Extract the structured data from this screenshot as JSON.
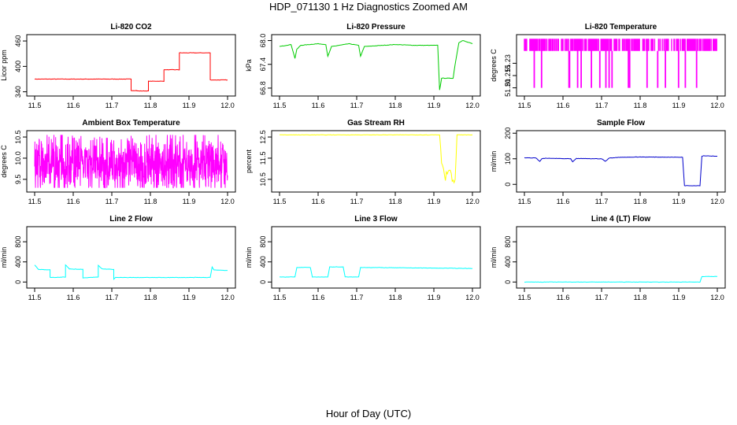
{
  "page": {
    "title": "HDP_071130  1 Hz Diagnostics Zoomed AM",
    "xaxis_title": "Hour of Day (UTC)"
  },
  "chart_data": [
    {
      "type": "line",
      "title": "Li-820 CO2",
      "ylabel": "Licor ppm",
      "color": "#ff0000",
      "xlim": [
        11.5,
        12.0
      ],
      "ylim": [
        330,
        475
      ],
      "xticks": [
        "11.5",
        "11.6",
        "11.7",
        "11.8",
        "11.9",
        "12.0"
      ],
      "yticks": [
        "340",
        "400",
        "460"
      ],
      "series": [
        {
          "x": [
            11.5,
            11.75,
            11.75,
            11.765,
            11.765,
            11.795,
            11.795,
            11.835,
            11.835,
            11.875,
            11.875,
            11.955,
            11.955,
            12.0
          ],
          "y": [
            370,
            370,
            343,
            343,
            342,
            342,
            365,
            365,
            392,
            392,
            432,
            432,
            368,
            368
          ]
        }
      ]
    },
    {
      "type": "line",
      "title": "Li-820 Pressure",
      "ylabel": "kPa",
      "color": "#00cc00",
      "xlim": [
        11.5,
        12.0
      ],
      "ylim": [
        66.6,
        68.15
      ],
      "xticks": [
        "11.5",
        "11.6",
        "11.7",
        "11.8",
        "11.9",
        "12.0"
      ],
      "yticks": [
        "66.8",
        "67.4",
        "68.0"
      ],
      "series": [
        {
          "x": [
            11.5,
            11.53,
            11.54,
            11.545,
            11.555,
            11.6,
            11.62,
            11.625,
            11.635,
            11.68,
            11.705,
            11.71,
            11.72,
            11.8,
            11.85,
            11.9,
            11.91,
            11.915,
            11.92,
            11.95,
            11.955,
            11.965,
            11.975,
            12.0
          ],
          "y": [
            67.85,
            67.9,
            67.55,
            67.78,
            67.88,
            67.92,
            67.9,
            67.6,
            67.85,
            67.92,
            67.88,
            67.6,
            67.85,
            67.9,
            67.88,
            67.88,
            67.88,
            66.75,
            67.05,
            67.05,
            67.4,
            67.95,
            68.0,
            67.92
          ]
        }
      ]
    },
    {
      "type": "line",
      "title": "Li-820 Temperature",
      "ylabel": "degrees C",
      "color": "#ff00ff",
      "xlim": [
        11.5,
        12.0
      ],
      "ylim": [
        51.19,
        51.265
      ],
      "xticks": [
        "11.5",
        "11.6",
        "11.7",
        "11.8",
        "11.9",
        "12.0"
      ],
      "yticks": [
        "51.20",
        "51.215",
        "51.23"
      ],
      "series": [
        {
          "y_levels": [
            51.2,
            51.215,
            51.23,
            51.245,
            51.26
          ]
        }
      ]
    },
    {
      "type": "line",
      "title": "Ambient Box Temperature",
      "ylabel": "degrees C",
      "color": "#ff00ff",
      "xlim": [
        11.5,
        12.0
      ],
      "ylim": [
        9.2,
        10.65
      ],
      "xticks": [
        "11.5",
        "11.6",
        "11.7",
        "11.8",
        "11.9",
        "12.0"
      ],
      "yticks": [
        "9.5",
        "10.0",
        "10.5"
      ],
      "series": [
        {
          "mean": 9.85,
          "range": [
            9.3,
            10.55
          ]
        }
      ]
    },
    {
      "type": "line",
      "title": "Gas Stream RH",
      "ylabel": "percent",
      "color": "#ffff00",
      "xlim": [
        11.5,
        12.0
      ],
      "ylim": [
        9.9,
        12.8
      ],
      "xticks": [
        "11.5",
        "11.6",
        "11.7",
        "11.8",
        "11.9",
        "12.0"
      ],
      "yticks": [
        "10.5",
        "11.5",
        "12.5"
      ],
      "series": [
        {
          "x": [
            11.5,
            11.915,
            11.92,
            11.93,
            11.94,
            11.95,
            11.955,
            11.96,
            11.965,
            12.0
          ],
          "y": [
            12.6,
            12.6,
            11.4,
            10.6,
            11.1,
            10.3,
            10.5,
            12.6,
            12.6,
            12.6
          ]
        }
      ]
    },
    {
      "type": "line",
      "title": "Sample Flow",
      "ylabel": "ml/min",
      "color": "#0000cc",
      "xlim": [
        11.5,
        12.0
      ],
      "ylim": [
        -30,
        210
      ],
      "xticks": [
        "11.5",
        "11.6",
        "11.7",
        "11.8",
        "11.9",
        "12.0"
      ],
      "yticks": [
        "0",
        "100",
        "200"
      ],
      "series": [
        {
          "x": [
            11.5,
            11.53,
            11.54,
            11.545,
            11.555,
            11.62,
            11.625,
            11.635,
            11.7,
            11.71,
            11.72,
            11.75,
            11.8,
            11.91,
            11.915,
            11.955,
            11.96,
            11.965,
            12.0
          ],
          "y": [
            104,
            103,
            90,
            100,
            102,
            100,
            88,
            101,
            100,
            90,
            103,
            106,
            107,
            106,
            -5,
            -5,
            110,
            112,
            110
          ]
        }
      ]
    },
    {
      "type": "line",
      "title": "Line 2 Flow",
      "ylabel": "ml/min",
      "color": "#00ffff",
      "xlim": [
        11.5,
        12.0
      ],
      "ylim": [
        -120,
        1100
      ],
      "xticks": [
        "11.5",
        "11.6",
        "11.7",
        "11.8",
        "11.9",
        "12.0"
      ],
      "yticks": [
        "0",
        "400",
        "800"
      ],
      "series": [
        {
          "x": [
            11.5,
            11.51,
            11.54,
            11.54,
            11.58,
            11.58,
            11.59,
            11.625,
            11.625,
            11.665,
            11.665,
            11.675,
            11.705,
            11.705,
            11.71,
            11.955,
            11.96,
            11.965,
            12.0
          ],
          "y": [
            340,
            250,
            240,
            90,
            100,
            340,
            260,
            250,
            80,
            100,
            330,
            260,
            250,
            60,
            90,
            90,
            300,
            240,
            230
          ]
        }
      ]
    },
    {
      "type": "line",
      "title": "Line 3 Flow",
      "ylabel": "ml/min",
      "color": "#00ffff",
      "xlim": [
        11.5,
        12.0
      ],
      "ylim": [
        -120,
        1100
      ],
      "xticks": [
        "11.5",
        "11.6",
        "11.7",
        "11.8",
        "11.9",
        "12.0"
      ],
      "yticks": [
        "0",
        "400",
        "800"
      ],
      "series": [
        {
          "x": [
            11.5,
            11.54,
            11.545,
            11.58,
            11.585,
            11.625,
            11.63,
            11.665,
            11.67,
            11.705,
            11.71,
            12.0
          ],
          "y": [
            100,
            100,
            290,
            290,
            100,
            100,
            300,
            300,
            100,
            100,
            290,
            270
          ]
        }
      ]
    },
    {
      "type": "line",
      "title": "Line 4 (LT) Flow",
      "ylabel": "ml/min",
      "color": "#00ffff",
      "xlim": [
        11.5,
        12.0
      ],
      "ylim": [
        -120,
        1100
      ],
      "xticks": [
        "11.5",
        "11.6",
        "11.7",
        "11.8",
        "11.9",
        "12.0"
      ],
      "yticks": [
        "0",
        "400",
        "800"
      ],
      "series": [
        {
          "x": [
            11.5,
            11.955,
            11.96,
            12.0
          ],
          "y": [
            0,
            0,
            110,
            110
          ]
        }
      ]
    }
  ]
}
